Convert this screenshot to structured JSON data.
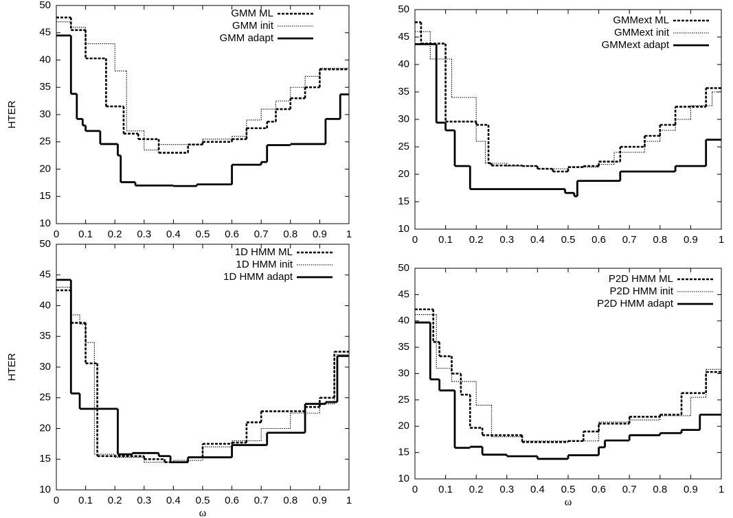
{
  "chart_data": [
    {
      "type": "line",
      "drawstyle": "steps-post",
      "ylabel": "HTER",
      "xlim": [
        0,
        1
      ],
      "xticks": [
        0,
        0.1,
        0.2,
        0.3,
        0.4,
        0.5,
        0.6,
        0.7,
        0.8,
        0.9,
        1
      ],
      "ylim": [
        10,
        50
      ],
      "yticks": [
        10,
        15,
        20,
        25,
        30,
        35,
        40,
        45,
        50
      ],
      "legend": "upper right",
      "series": [
        {
          "name": "GMM ML",
          "color": "#000000",
          "style": "dashed",
          "x": [
            0,
            0.05,
            0.1,
            0.17,
            0.23,
            0.28,
            0.35,
            0.45,
            0.5,
            0.6,
            0.65,
            0.72,
            0.75,
            0.8,
            0.85,
            0.9,
            1
          ],
          "values": [
            47.8,
            45.5,
            40.3,
            31.5,
            26.5,
            25.5,
            23,
            24.5,
            25,
            25.5,
            27.5,
            28.7,
            31,
            33,
            35,
            38.3,
            38.3
          ]
        },
        {
          "name": "GMM init",
          "color": "#000000",
          "style": "dotted",
          "x": [
            0,
            0.05,
            0.1,
            0.2,
            0.24,
            0.3,
            0.35,
            0.5,
            0.6,
            0.65,
            0.7,
            0.75,
            0.8,
            0.85,
            0.9,
            1
          ],
          "values": [
            47,
            46,
            43,
            38,
            27,
            23.5,
            24.5,
            25.5,
            26,
            29,
            31,
            32.5,
            35,
            37,
            38.5,
            38.5
          ]
        },
        {
          "name": "GMM adapt",
          "color": "#000000",
          "style": "solid",
          "x": [
            0,
            0.05,
            0.07,
            0.09,
            0.1,
            0.15,
            0.21,
            0.22,
            0.27,
            0.4,
            0.48,
            0.6,
            0.7,
            0.72,
            0.8,
            0.92,
            0.97,
            1
          ],
          "values": [
            44.5,
            33.8,
            29.2,
            28,
            27,
            24.6,
            22.5,
            17.6,
            17,
            16.9,
            17.2,
            20.8,
            21.3,
            24.4,
            24.6,
            29.2,
            33.7,
            33.7
          ]
        }
      ]
    },
    {
      "type": "line",
      "drawstyle": "steps-post",
      "xlim": [
        0,
        1
      ],
      "xticks": [
        0,
        0.1,
        0.2,
        0.3,
        0.4,
        0.5,
        0.6,
        0.7,
        0.8,
        0.9,
        1
      ],
      "ylim": [
        10,
        50
      ],
      "yticks": [
        10,
        15,
        20,
        25,
        30,
        35,
        40,
        45,
        50
      ],
      "legend": "upper right",
      "series": [
        {
          "name": "GMMext ML",
          "color": "#000000",
          "style": "dashed",
          "x": [
            0,
            0.02,
            0.1,
            0.2,
            0.24,
            0.25,
            0.35,
            0.4,
            0.45,
            0.5,
            0.55,
            0.6,
            0.67,
            0.75,
            0.8,
            0.85,
            0.95,
            1
          ],
          "values": [
            47.7,
            43.8,
            29.6,
            29,
            22,
            21.6,
            21.5,
            21,
            20.5,
            21.3,
            21.5,
            22.3,
            25,
            27,
            29,
            32.3,
            35.7,
            35.7
          ]
        },
        {
          "name": "GMMext init",
          "color": "#000000",
          "style": "dotted",
          "x": [
            0,
            0.05,
            0.12,
            0.2,
            0.23,
            0.3,
            0.4,
            0.5,
            0.6,
            0.65,
            0.75,
            0.8,
            0.85,
            0.9,
            0.97,
            1
          ],
          "values": [
            46,
            41,
            34,
            26,
            22,
            21.5,
            21,
            21.3,
            21.8,
            24,
            26,
            28,
            30,
            32.5,
            35,
            35
          ]
        },
        {
          "name": "GMMext adapt",
          "color": "#000000",
          "style": "solid",
          "x": [
            0,
            0.07,
            0.1,
            0.13,
            0.18,
            0.49,
            0.52,
            0.53,
            0.67,
            0.85,
            0.95,
            1
          ],
          "values": [
            43.7,
            29.4,
            28,
            21.5,
            17.3,
            16.6,
            16,
            18.8,
            20.5,
            21.5,
            26.3,
            26.3
          ]
        }
      ]
    },
    {
      "type": "line",
      "drawstyle": "steps-post",
      "xlabel": "ω",
      "ylabel": "HTER",
      "xlim": [
        0,
        1
      ],
      "xticks": [
        0,
        0.1,
        0.2,
        0.3,
        0.4,
        0.5,
        0.6,
        0.7,
        0.8,
        0.9,
        1
      ],
      "ylim": [
        10,
        50
      ],
      "yticks": [
        10,
        15,
        20,
        25,
        30,
        35,
        40,
        45,
        50
      ],
      "legend": "upper right",
      "series": [
        {
          "name": "1D HMM ML",
          "color": "#000000",
          "style": "dashed",
          "x": [
            0,
            0.05,
            0.1,
            0.14,
            0.3,
            0.37,
            0.45,
            0.5,
            0.6,
            0.65,
            0.7,
            0.85,
            0.9,
            0.95,
            1
          ],
          "values": [
            42.5,
            37.2,
            30.6,
            15.5,
            15,
            14.5,
            15.3,
            17.5,
            17.7,
            21,
            22.8,
            23.5,
            25,
            32.5,
            32.5
          ]
        },
        {
          "name": "1D HMM init",
          "color": "#000000",
          "style": "dotted",
          "x": [
            0,
            0.05,
            0.08,
            0.1,
            0.13,
            0.2,
            0.3,
            0.4,
            0.5,
            0.6,
            0.7,
            0.8,
            0.9,
            0.95,
            1
          ],
          "values": [
            43,
            38.5,
            37,
            34,
            15.8,
            15.3,
            14.5,
            14.8,
            17,
            18,
            20,
            22.5,
            24,
            32,
            32
          ]
        },
        {
          "name": "1D HMM adapt",
          "color": "#000000",
          "style": "solid",
          "x": [
            0,
            0.05,
            0.08,
            0.21,
            0.26,
            0.35,
            0.39,
            0.45,
            0.6,
            0.72,
            0.85,
            0.92,
            0.96,
            1
          ],
          "values": [
            44.2,
            25.7,
            23.2,
            15.8,
            16,
            15.5,
            14.5,
            15.3,
            17.3,
            19.3,
            24,
            24.3,
            31.8,
            31.8
          ]
        }
      ]
    },
    {
      "type": "line",
      "drawstyle": "steps-post",
      "xlabel": "ω",
      "xlim": [
        0,
        1
      ],
      "xticks": [
        0,
        0.1,
        0.2,
        0.3,
        0.4,
        0.5,
        0.6,
        0.7,
        0.8,
        0.9,
        1
      ],
      "ylim": [
        10,
        50
      ],
      "yticks": [
        10,
        15,
        20,
        25,
        30,
        35,
        40,
        45,
        50
      ],
      "legend": "upper right",
      "series": [
        {
          "name": "P2D HMM ML",
          "color": "#000000",
          "style": "dashed",
          "x": [
            0,
            0.06,
            0.08,
            0.12,
            0.15,
            0.18,
            0.22,
            0.35,
            0.5,
            0.55,
            0.6,
            0.7,
            0.8,
            0.87,
            0.95,
            1
          ],
          "values": [
            42.2,
            36,
            33.3,
            30,
            26,
            19.7,
            18.3,
            17,
            17.2,
            19,
            20.5,
            21.8,
            22.2,
            26.3,
            30.3,
            30.3
          ]
        },
        {
          "name": "P2D HMM init",
          "color": "#000000",
          "style": "dotted",
          "x": [
            0,
            0.07,
            0.12,
            0.2,
            0.25,
            0.35,
            0.5,
            0.6,
            0.7,
            0.8,
            0.9,
            0.95,
            1
          ],
          "values": [
            41.2,
            31,
            28.5,
            24,
            18,
            17.2,
            17.2,
            20.8,
            21.2,
            22,
            25.5,
            30.8,
            30.8
          ]
        },
        {
          "name": "P2D HMM adapt",
          "color": "#000000",
          "style": "solid",
          "x": [
            0,
            0.05,
            0.08,
            0.13,
            0.18,
            0.22,
            0.3,
            0.4,
            0.5,
            0.6,
            0.62,
            0.7,
            0.8,
            0.87,
            0.93,
            1
          ],
          "values": [
            39.7,
            28.9,
            26.8,
            15.9,
            16.1,
            14.6,
            14.3,
            13.8,
            14.5,
            16,
            17.3,
            18.3,
            18.7,
            19.3,
            22.2,
            22.2
          ]
        }
      ]
    }
  ]
}
